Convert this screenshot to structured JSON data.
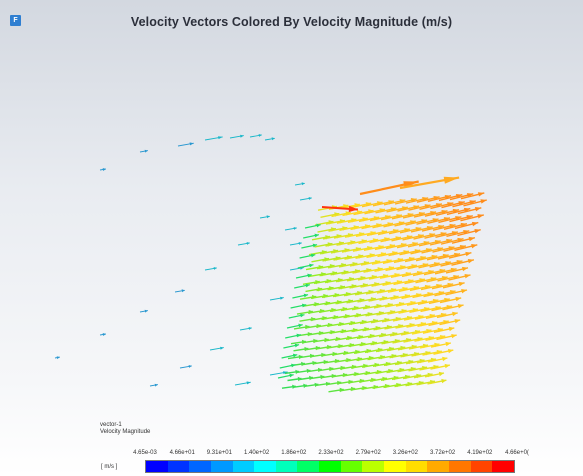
{
  "window": {
    "app_icon_glyph": "F"
  },
  "title": "Velocity Vectors Colored By Velocity Magnitude (m/s)",
  "legend": {
    "name": "vector-1",
    "variable": "Velocity Magnitude",
    "units": "[ m/s ]",
    "tick_labels": [
      "4.65e-03",
      "4.66e+01",
      "9.31e+01",
      "1.40e+02",
      "1.86e+02",
      "2.33e+02",
      "2.79e+02",
      "3.26e+02",
      "3.72e+02",
      "4.19e+02",
      "4.66e+0("
    ],
    "colors": [
      "#0000ff",
      "#0033ff",
      "#0066ff",
      "#0099ff",
      "#00ccff",
      "#00ffff",
      "#00ffbb",
      "#00ff66",
      "#00ff00",
      "#66ff00",
      "#bbff00",
      "#ffff00",
      "#ffdd00",
      "#ffaa00",
      "#ff7700",
      "#ff4400",
      "#ff0000"
    ]
  }
}
